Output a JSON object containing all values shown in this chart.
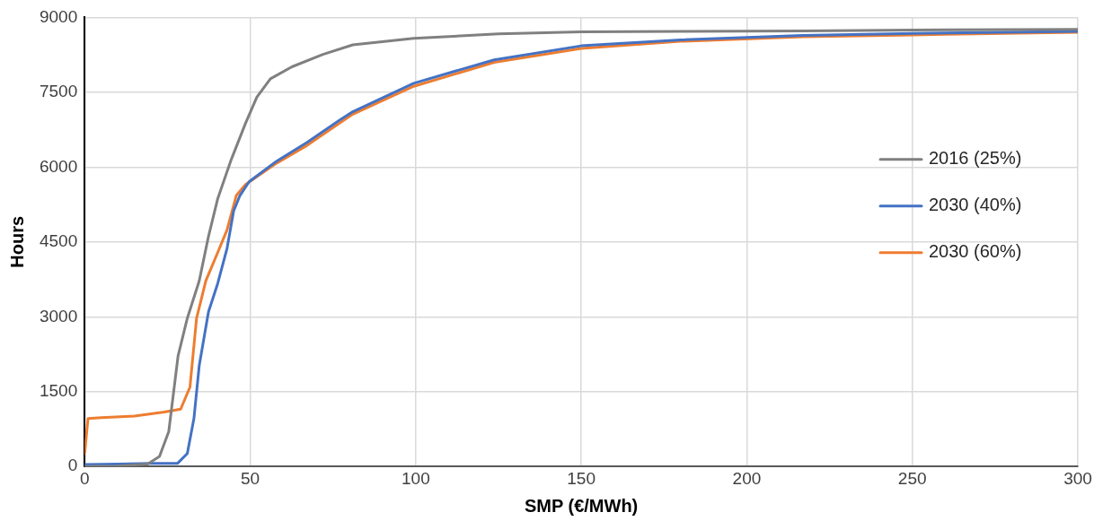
{
  "chart_data": {
    "type": "line",
    "xlabel": "SMP (€/MWh)",
    "ylabel": "Hours",
    "xlim": [
      0,
      300
    ],
    "xticks": [
      0,
      50,
      100,
      150,
      200,
      250,
      300
    ],
    "ylim": [
      0,
      9000
    ],
    "yticks": [
      0,
      1500,
      3000,
      4500,
      6000,
      7500,
      9000
    ],
    "grid": true,
    "legend": "right",
    "marker": "none",
    "line_style": "solid",
    "series": [
      {
        "name": "2016 (25%)",
        "color": "#808080",
        "x": [
          0,
          10,
          19,
          22.6,
          25.4,
          28.2,
          31,
          34.6,
          37.4,
          40.2,
          44.1,
          48.6,
          52,
          56.1,
          62.6,
          72,
          81,
          99.4,
          125,
          150,
          180,
          217,
          260,
          300
        ],
        "values": [
          0,
          10,
          50,
          200,
          700,
          2210,
          2970,
          3720,
          4610,
          5370,
          6120,
          6880,
          7400,
          7770,
          8010,
          8260,
          8450,
          8580,
          8670,
          8710,
          8720,
          8730,
          8750,
          8760
        ]
      },
      {
        "name": "2030 (40%)",
        "color": "#4472c4",
        "x": [
          0,
          10,
          20,
          28,
          31,
          33,
          34.6,
          37.4,
          40.2,
          43,
          45,
          46.9,
          49.7,
          58,
          67.3,
          77,
          81,
          99.4,
          123.7,
          150,
          180,
          217,
          260,
          300
        ],
        "values": [
          40,
          50,
          60,
          60,
          260,
          960,
          2020,
          3100,
          3670,
          4370,
          5120,
          5430,
          5710,
          6120,
          6500,
          6940,
          7110,
          7680,
          8150,
          8430,
          8550,
          8640,
          8690,
          8720
        ]
      },
      {
        "name": "2030 (60%)",
        "color": "#ed7d31",
        "x": [
          0,
          1,
          5,
          15,
          24,
          29,
          31.8,
          33.8,
          36.6,
          40.2,
          43,
          45.8,
          48.6,
          58,
          67.3,
          77,
          81,
          99.4,
          123.7,
          150,
          180,
          217,
          260,
          300
        ],
        "values": [
          260,
          960,
          980,
          1010,
          1090,
          1150,
          1590,
          2970,
          3720,
          4290,
          4740,
          5430,
          5650,
          6080,
          6440,
          6880,
          7060,
          7620,
          8100,
          8380,
          8520,
          8610,
          8660,
          8700
        ]
      }
    ]
  }
}
